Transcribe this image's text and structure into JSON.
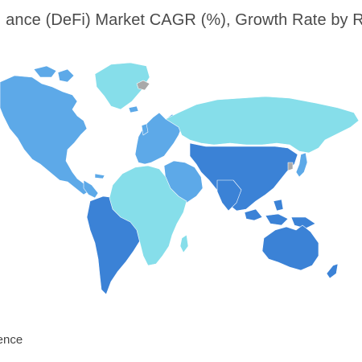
{
  "title": "ance (DeFi) Market CAGR (%), Growth Rate by R",
  "source": "igence",
  "colors": {
    "high": "#3B82D6",
    "medium": "#5DA9E8",
    "low": "#86DEEA",
    "no_data": "#A9A9A9",
    "background": "#FFFFFF"
  },
  "legend_levels": [
    "high",
    "medium",
    "low",
    "no_data"
  ],
  "regions": [
    {
      "name": "north-america",
      "level": "medium"
    },
    {
      "name": "greenland",
      "level": "low"
    },
    {
      "name": "south-america",
      "level": "high"
    },
    {
      "name": "europe",
      "level": "medium"
    },
    {
      "name": "russia",
      "level": "low"
    },
    {
      "name": "middle-east",
      "level": "medium"
    },
    {
      "name": "africa",
      "level": "low"
    },
    {
      "name": "asia",
      "level": "high"
    },
    {
      "name": "japan",
      "level": "medium"
    },
    {
      "name": "australia",
      "level": "high"
    },
    {
      "name": "svalbard",
      "level": "no_data"
    }
  ]
}
